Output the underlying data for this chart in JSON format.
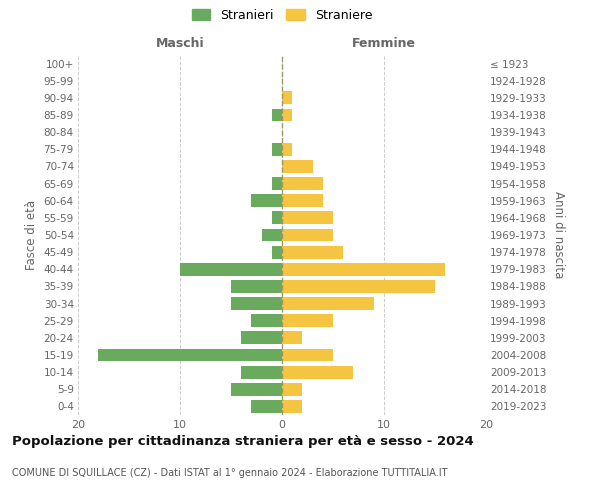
{
  "age_groups": [
    "0-4",
    "5-9",
    "10-14",
    "15-19",
    "20-24",
    "25-29",
    "30-34",
    "35-39",
    "40-44",
    "45-49",
    "50-54",
    "55-59",
    "60-64",
    "65-69",
    "70-74",
    "75-79",
    "80-84",
    "85-89",
    "90-94",
    "95-99",
    "100+"
  ],
  "birth_years": [
    "2019-2023",
    "2014-2018",
    "2009-2013",
    "2004-2008",
    "1999-2003",
    "1994-1998",
    "1989-1993",
    "1984-1988",
    "1979-1983",
    "1974-1978",
    "1969-1973",
    "1964-1968",
    "1959-1963",
    "1954-1958",
    "1949-1953",
    "1944-1948",
    "1939-1943",
    "1934-1938",
    "1929-1933",
    "1924-1928",
    "≤ 1923"
  ],
  "males": [
    3,
    5,
    4,
    18,
    4,
    3,
    5,
    5,
    10,
    1,
    2,
    1,
    3,
    1,
    0,
    1,
    0,
    1,
    0,
    0,
    0
  ],
  "females": [
    2,
    2,
    7,
    5,
    2,
    5,
    9,
    15,
    16,
    6,
    5,
    5,
    4,
    4,
    3,
    1,
    0,
    1,
    1,
    0,
    0
  ],
  "male_color": "#6aaa5e",
  "female_color": "#f5c542",
  "bg_color": "#ffffff",
  "grid_color": "#cccccc",
  "title": "Popolazione per cittadinanza straniera per età e sesso - 2024",
  "subtitle": "COMUNE DI SQUILLACE (CZ) - Dati ISTAT al 1° gennaio 2024 - Elaborazione TUTTITALIA.IT",
  "left_label": "Maschi",
  "right_label": "Femmine",
  "ylabel": "Fasce di età",
  "right_ylabel": "Anni di nascita",
  "legend_male": "Stranieri",
  "legend_female": "Straniere",
  "xlim": 20
}
